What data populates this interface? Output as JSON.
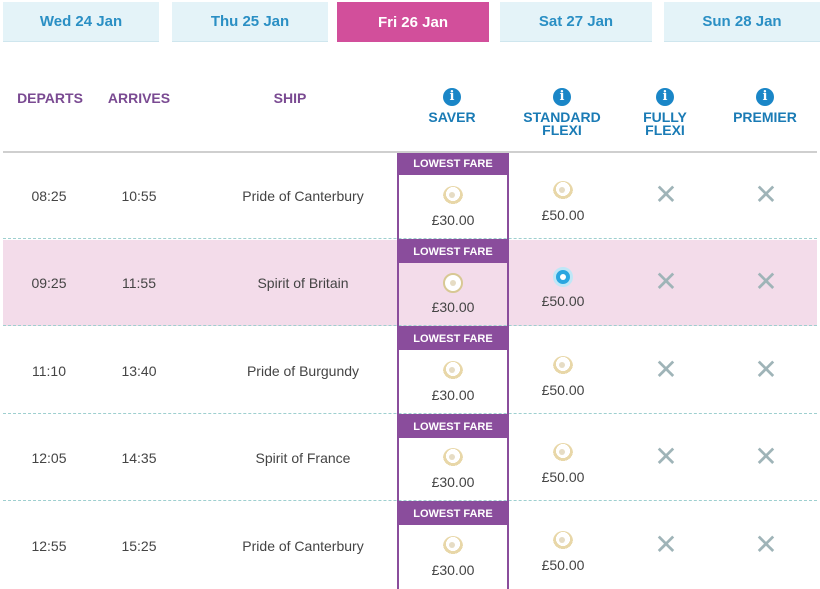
{
  "date_tabs": [
    {
      "label": "Wed 24 Jan",
      "active": false
    },
    {
      "label": "Thu 25 Jan",
      "active": false
    },
    {
      "label": "Fri 26 Jan",
      "active": true
    },
    {
      "label": "Sat 27 Jan",
      "active": false
    },
    {
      "label": "Sun 28 Jan",
      "active": false
    }
  ],
  "header": {
    "departs": "DEPARTS",
    "arrives": "ARRIVES",
    "ship": "SHIP",
    "info_glyph": "i",
    "saver": [
      "SAVER"
    ],
    "standard_flexi": [
      "STANDARD",
      "FLEXI"
    ],
    "fully_flexi": [
      "FULLY",
      "FLEXI"
    ],
    "premier": [
      "PREMIER"
    ]
  },
  "lowest_fare_label": "LOWEST FARE",
  "unavailable_glyph": "✕",
  "rows": [
    {
      "departs": "08:25",
      "arrives": "10:55",
      "ship": "Pride of Canterbury",
      "saver_price": "£30.00",
      "standard_price": "£50.00",
      "selected": false,
      "selected_fare": "none"
    },
    {
      "departs": "09:25",
      "arrives": "11:55",
      "ship": "Spirit of Britain",
      "saver_price": "£30.00",
      "standard_price": "£50.00",
      "selected": true,
      "selected_fare": "standard_flexi"
    },
    {
      "departs": "11:10",
      "arrives": "13:40",
      "ship": "Pride of Burgundy",
      "saver_price": "£30.00",
      "standard_price": "£50.00",
      "selected": false,
      "selected_fare": "none"
    },
    {
      "departs": "12:05",
      "arrives": "14:35",
      "ship": "Spirit of France",
      "saver_price": "£30.00",
      "standard_price": "£50.00",
      "selected": false,
      "selected_fare": "none"
    },
    {
      "departs": "12:55",
      "arrives": "15:25",
      "ship": "Pride of Canterbury",
      "saver_price": "£30.00",
      "standard_price": "£50.00",
      "selected": false,
      "selected_fare": "none"
    }
  ],
  "colors": {
    "active_tab": "#d24f9b",
    "tab_bg": "#e4f3f8",
    "saver_border": "#8a4d9c",
    "selected_row": "#f3dcea",
    "info_blue": "#1a86c7"
  },
  "icons": {
    "info": "info-icon",
    "radio": "radio-icon",
    "unavailable": "cross-icon"
  }
}
